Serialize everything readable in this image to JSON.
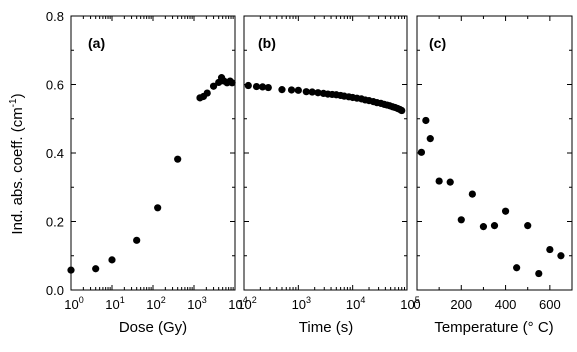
{
  "chart_data": [
    {
      "type": "scatter",
      "panel_label": "(a)",
      "xlabel": "Dose (Gy)",
      "ylabel": "Ind. abs. coeff. (cm",
      "ylabel_sup": "-1",
      "ylabel_tail": ")",
      "x_scale": "log",
      "xlim": [
        1,
        10000
      ],
      "ylim": [
        0.0,
        0.8
      ],
      "x_ticks": [
        1,
        10,
        100,
        1000,
        10000
      ],
      "x_tick_labels": [
        {
          "base": "10",
          "exp": "0"
        },
        {
          "base": "10",
          "exp": "1"
        },
        {
          "base": "10",
          "exp": "2"
        },
        {
          "base": "10",
          "exp": "3"
        },
        {
          "base": "10",
          "exp": "4"
        }
      ],
      "y_ticks": [
        0.0,
        0.2,
        0.4,
        0.6,
        0.8
      ],
      "y_tick_labels": [
        "0.0",
        "0.2",
        "0.4",
        "0.6",
        "0.8"
      ],
      "x": [
        1,
        4,
        10,
        40,
        130,
        400,
        1400,
        1700,
        2100,
        3000,
        4000,
        4700,
        5400,
        6400,
        7600,
        8500
      ],
      "y": [
        0.058,
        0.062,
        0.088,
        0.145,
        0.24,
        0.382,
        0.561,
        0.565,
        0.575,
        0.595,
        0.606,
        0.62,
        0.61,
        0.605,
        0.61,
        0.605
      ]
    },
    {
      "type": "scatter",
      "panel_label": "(b)",
      "xlabel": "Time (s)",
      "x_scale": "log",
      "xlim": [
        100,
        100000
      ],
      "ylim": [
        0.0,
        0.8
      ],
      "x_ticks": [
        100,
        1000,
        10000,
        100000
      ],
      "x_tick_labels": [
        {
          "base": "10",
          "exp": "2"
        },
        {
          "base": "10",
          "exp": "3"
        },
        {
          "base": "10",
          "exp": "4"
        },
        {
          "base": "10",
          "exp": "5"
        }
      ],
      "x": [
        120,
        170,
        220,
        280,
        500,
        750,
        1000,
        1400,
        1800,
        2300,
        2900,
        3500,
        4200,
        5000,
        6000,
        7000,
        8500,
        10000,
        12000,
        14500,
        17000,
        20000,
        24000,
        28000,
        33000,
        38000,
        43000,
        48000,
        54000,
        60000,
        67000,
        74000,
        80000
      ],
      "y": [
        0.597,
        0.594,
        0.593,
        0.591,
        0.585,
        0.584,
        0.583,
        0.579,
        0.578,
        0.576,
        0.574,
        0.572,
        0.571,
        0.57,
        0.568,
        0.566,
        0.564,
        0.562,
        0.56,
        0.558,
        0.555,
        0.553,
        0.55,
        0.547,
        0.545,
        0.542,
        0.54,
        0.538,
        0.535,
        0.533,
        0.53,
        0.527,
        0.524
      ]
    },
    {
      "type": "scatter",
      "panel_label": "(c)",
      "xlabel": "Temperature (° C)",
      "x_scale": "linear",
      "xlim": [
        0,
        700
      ],
      "ylim": [
        0.0,
        0.8
      ],
      "x_ticks": [
        0,
        200,
        400,
        600
      ],
      "x_tick_labels": [
        "0",
        "200",
        "400",
        "600"
      ],
      "x": [
        20,
        40,
        60,
        100,
        150,
        200,
        250,
        300,
        350,
        400,
        450,
        500,
        550,
        600,
        650
      ],
      "y": [
        0.402,
        0.495,
        0.442,
        0.318,
        0.315,
        0.205,
        0.28,
        0.185,
        0.188,
        0.23,
        0.065,
        0.188,
        0.048,
        0.118,
        0.1
      ]
    }
  ]
}
